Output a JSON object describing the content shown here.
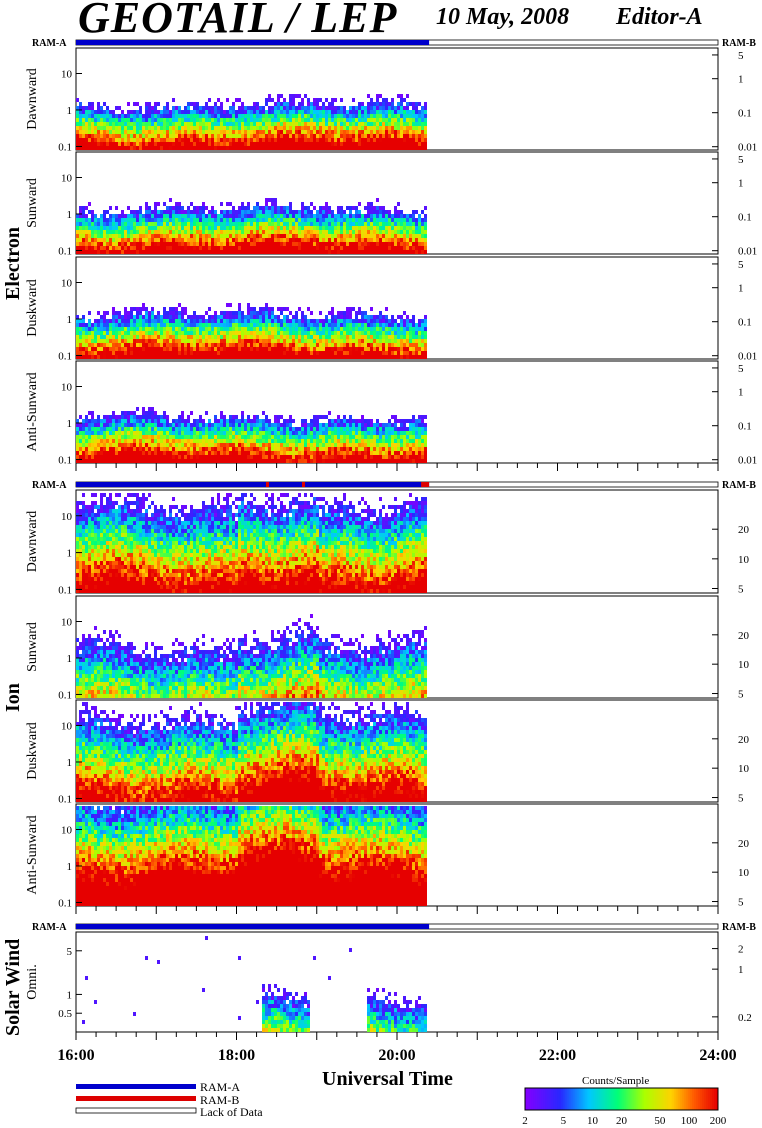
{
  "header": {
    "title": "GEOTAIL / LEP",
    "date": "10 May, 2008",
    "editor": "Editor-A"
  },
  "groups": {
    "electron": "Electron",
    "ion": "Ion",
    "solar_wind": "Solar Wind"
  },
  "ram": {
    "left": "RAM-A",
    "right": "RAM-B"
  },
  "xaxis": {
    "label": "Universal Time",
    "ticks": [
      "16:00",
      "18:00",
      "20:00",
      "22:00",
      "24:00"
    ]
  },
  "legend": {
    "ram_a": "RAM-A",
    "ram_b": "RAM-B",
    "lack": "Lack of Data"
  },
  "colorbar": {
    "title": "Counts/Sample",
    "ticks": [
      "2",
      "5",
      "10",
      "20",
      "50",
      "100",
      "200"
    ]
  },
  "colors": {
    "ram_a": "#0000cc",
    "ram_b": "#dd0000"
  },
  "chart_data": {
    "type": "heatmap",
    "time_range_hours": [
      16,
      24
    ],
    "data_end_hour": 20.4,
    "panels": [
      {
        "group": "electron",
        "label": "Dawnward",
        "ylim": [
          0.08,
          50
        ],
        "left_ticks": [
          "10",
          "1",
          "0.1"
        ],
        "right_ticks": [
          "5",
          "1",
          "0.1",
          "0.01"
        ]
      },
      {
        "group": "electron",
        "label": "Sunward",
        "ylim": [
          0.08,
          50
        ],
        "left_ticks": [
          "10",
          "1",
          "0.1"
        ],
        "right_ticks": [
          "5",
          "1",
          "0.1",
          "0.01"
        ]
      },
      {
        "group": "electron",
        "label": "Duskward",
        "ylim": [
          0.08,
          50
        ],
        "left_ticks": [
          "10",
          "1",
          "0.1"
        ],
        "right_ticks": [
          "5",
          "1",
          "0.1",
          "0.01"
        ]
      },
      {
        "group": "electron",
        "label": "Anti-Sunward",
        "ylim": [
          0.08,
          50
        ],
        "left_ticks": [
          "10",
          "1",
          "0.1"
        ],
        "right_ticks": [
          "5",
          "1",
          "0.1",
          "0.01"
        ]
      },
      {
        "group": "ion",
        "label": "Dawnward",
        "ylim": [
          0.08,
          50
        ],
        "left_ticks": [
          "10",
          "1",
          "0.1"
        ],
        "right_ticks": [
          "20",
          "10",
          "5"
        ]
      },
      {
        "group": "ion",
        "label": "Sunward",
        "ylim": [
          0.08,
          50
        ],
        "left_ticks": [
          "10",
          "1",
          "0.1"
        ],
        "right_ticks": [
          "20",
          "10",
          "5"
        ]
      },
      {
        "group": "ion",
        "label": "Duskward",
        "ylim": [
          0.08,
          50
        ],
        "left_ticks": [
          "10",
          "1",
          "0.1"
        ],
        "right_ticks": [
          "20",
          "10",
          "5"
        ]
      },
      {
        "group": "ion",
        "label": "Anti-Sunward",
        "ylim": [
          0.08,
          50
        ],
        "left_ticks": [
          "10",
          "1",
          "0.1"
        ],
        "right_ticks": [
          "20",
          "10",
          "5"
        ]
      },
      {
        "group": "solar_wind",
        "label": "Omni.",
        "ylim": [
          0.25,
          10
        ],
        "left_ticks": [
          "5",
          "1",
          "0.5"
        ],
        "right_ticks": [
          "2",
          "1",
          "0.2"
        ]
      }
    ],
    "colorscale": {
      "min": 2,
      "max": 200,
      "scale": "log"
    }
  }
}
